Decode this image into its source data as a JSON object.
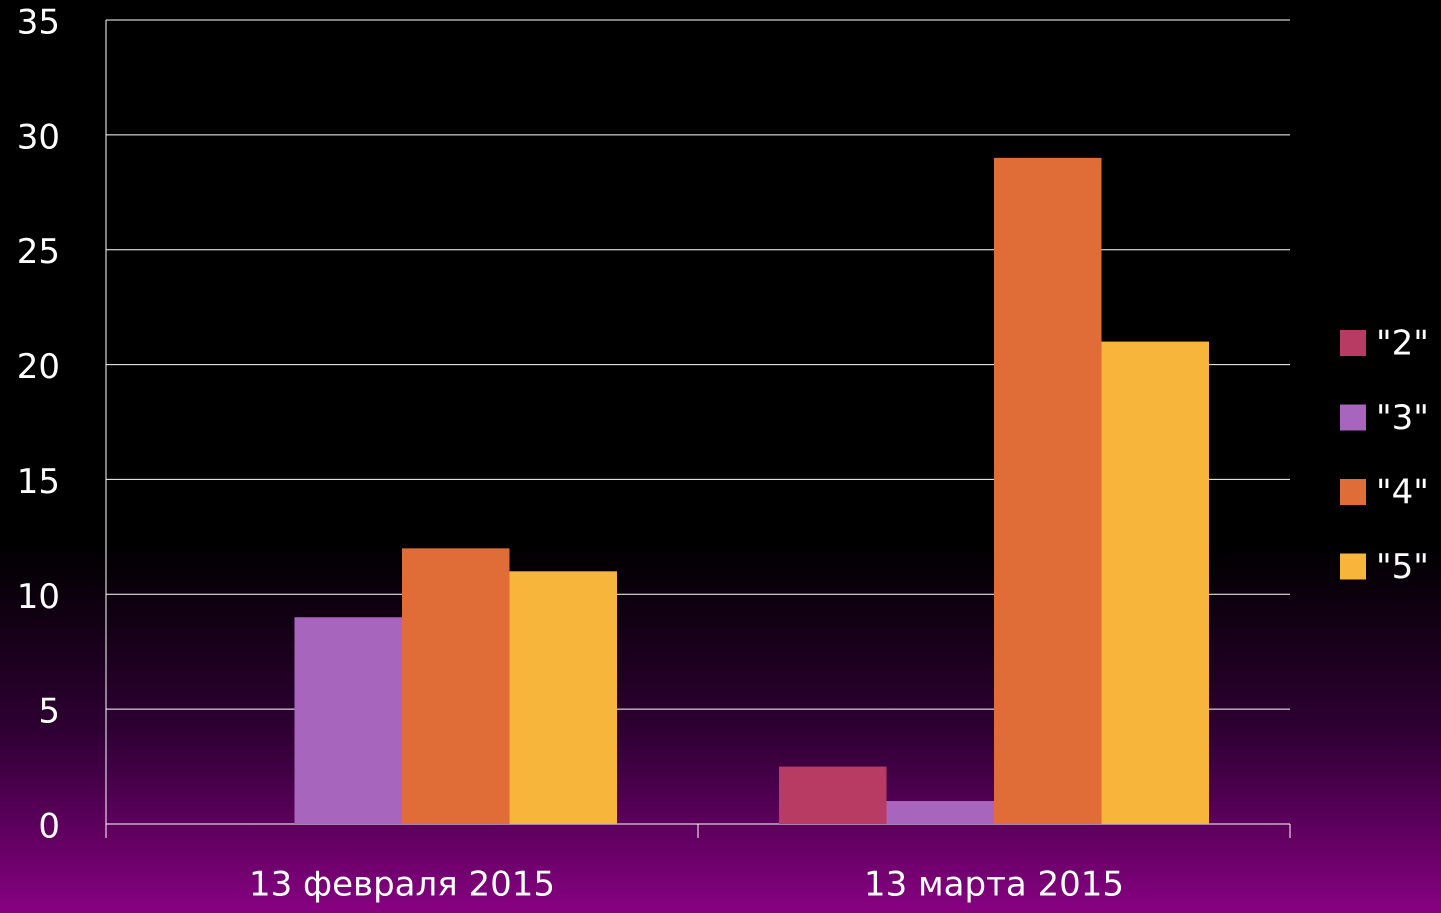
{
  "chart_data": {
    "type": "bar",
    "categories": [
      "13 февраля 2015",
      "13 марта 2015"
    ],
    "series": [
      {
        "name": "\"2\"",
        "color": "#b83b63",
        "values": [
          0,
          2.5
        ]
      },
      {
        "name": "\"3\"",
        "color": "#a865be",
        "values": [
          9,
          1
        ]
      },
      {
        "name": "\"4\"",
        "color": "#e06d38",
        "values": [
          12,
          29
        ]
      },
      {
        "name": "\"5\"",
        "color": "#f8b53b",
        "values": [
          11,
          21
        ]
      }
    ],
    "ylim": [
      0,
      35
    ],
    "yticks": [
      0,
      5,
      10,
      15,
      20,
      25,
      30,
      35
    ],
    "grid": true,
    "legend": "right"
  }
}
